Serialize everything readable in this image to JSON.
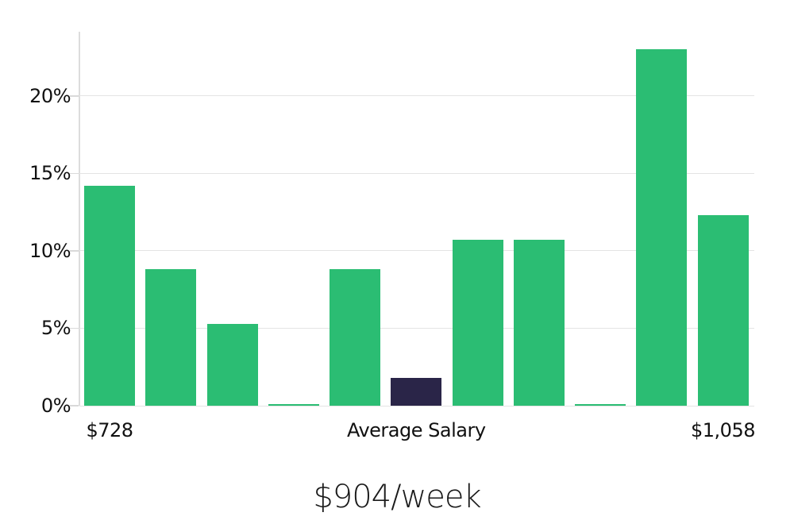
{
  "chart_data": {
    "type": "bar",
    "title": "$904/week",
    "values": [
      14.2,
      8.8,
      5.3,
      0.1,
      8.8,
      1.8,
      10.7,
      10.7,
      0.1,
      23.0,
      12.3
    ],
    "value_unit": "%",
    "yticks": [
      0,
      5,
      10,
      15,
      20
    ],
    "ytick_suffix": "%",
    "ylim": [
      0,
      24.15
    ],
    "grid": true,
    "legend_position": "none",
    "bar_color": "#2bbd73",
    "highlight": {
      "index": 5,
      "color": "#2a2548",
      "meaning": "Average Salary"
    },
    "x_axis_labels": [
      {
        "bar_index": 0,
        "text": "$728"
      },
      {
        "bar_index": 5,
        "text": "Average Salary"
      },
      {
        "bar_index": 10,
        "text": "$1,058"
      }
    ]
  }
}
